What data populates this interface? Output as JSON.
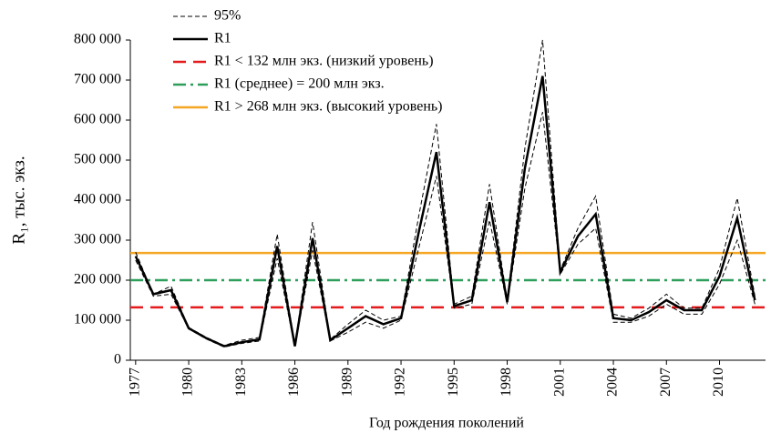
{
  "chart_data": {
    "type": "line",
    "y_label": "R₁, тыс. экз.",
    "x_label": "Год рождения поколений",
    "x": [
      1977,
      1978,
      1979,
      1980,
      1981,
      1982,
      1983,
      1984,
      1985,
      1986,
      1987,
      1988,
      1989,
      1990,
      1991,
      1992,
      1993,
      1994,
      1995,
      1996,
      1997,
      1998,
      1999,
      2000,
      2001,
      2002,
      2003,
      2004,
      2005,
      2006,
      2007,
      2008,
      2009,
      2010,
      2011,
      2012
    ],
    "xlim": [
      1976.7,
      2012.6
    ],
    "xticks": [
      1977,
      1980,
      1983,
      1986,
      1989,
      1992,
      1995,
      1998,
      2001,
      2004,
      2007,
      2010
    ],
    "ylim": [
      0,
      800000
    ],
    "yticks": [
      0,
      {
        "value": 100000,
        "label": "100 000"
      },
      {
        "value": 200000,
        "label": "200 000"
      },
      {
        "value": 300000,
        "label": "300 000"
      },
      {
        "value": 400000,
        "label": "400 000"
      },
      {
        "value": 500000,
        "label": "500 000"
      },
      {
        "value": 600000,
        "label": "600 000"
      },
      {
        "value": 700000,
        "label": "700 000"
      },
      {
        "value": 800000,
        "label": "800 000"
      }
    ],
    "band": {
      "name": "95%",
      "color": "#000000",
      "upper": [
        270000,
        165000,
        185000,
        82000,
        57000,
        37000,
        50000,
        57000,
        315000,
        37000,
        345000,
        52000,
        90000,
        125000,
        100000,
        110000,
        360000,
        590000,
        140000,
        160000,
        440000,
        150000,
        530000,
        800000,
        225000,
        330000,
        410000,
        115000,
        105000,
        130000,
        165000,
        130000,
        130000,
        230000,
        405000,
        160000
      ],
      "lower": [
        250000,
        160000,
        165000,
        78000,
        53000,
        33000,
        42000,
        48000,
        255000,
        33000,
        275000,
        48000,
        70000,
        95000,
        80000,
        100000,
        280000,
        460000,
        130000,
        140000,
        350000,
        140000,
        430000,
        620000,
        215000,
        290000,
        330000,
        95000,
        95000,
        110000,
        140000,
        115000,
        115000,
        190000,
        300000,
        140000
      ]
    },
    "series": [
      {
        "name": "R1",
        "color": "#000000",
        "values": [
          260000,
          165000,
          175000,
          80000,
          55000,
          35000,
          45000,
          52000,
          285000,
          35000,
          305000,
          50000,
          80000,
          110000,
          90000,
          105000,
          320000,
          520000,
          135000,
          150000,
          395000,
          145000,
          480000,
          710000,
          220000,
          310000,
          365000,
          105000,
          100000,
          120000,
          150000,
          125000,
          125000,
          210000,
          355000,
          150000
        ]
      }
    ],
    "levels": [
      {
        "name": "R1 < 132 млн экз. (низкий уровень)",
        "color": "#e41a1c",
        "value": 132000,
        "style": "dash"
      },
      {
        "name": "R1 (среднее) = 200 млн экз.",
        "color": "#2e9e5b",
        "value": 200000,
        "style": "dashdot"
      },
      {
        "name": "R1 > 268 млн экз. (высокий уровень)",
        "color": "#f5a623",
        "value": 268000,
        "style": "solid"
      }
    ]
  }
}
